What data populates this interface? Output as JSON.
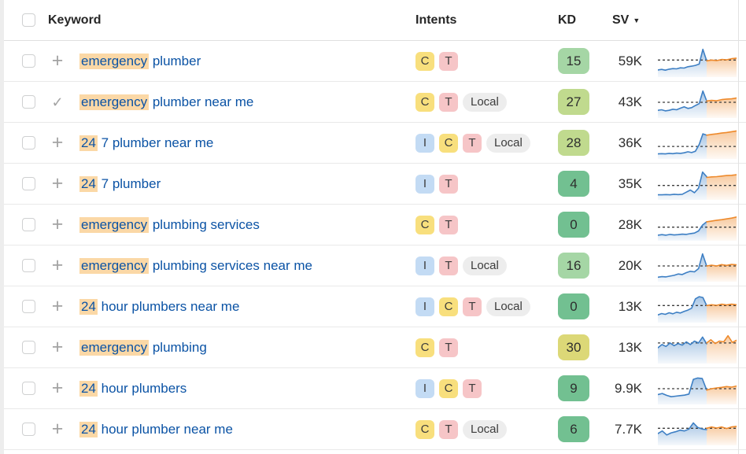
{
  "icons": {
    "plus": "+",
    "check": "✓",
    "sort_desc": "▼"
  },
  "colors": {
    "link": "#0b53a5",
    "keyword_highlight": "#fbd8a6",
    "kd_green": "#72c091",
    "kd_lightgreen": "#a5d6a5",
    "kd_lime": "#c0da8e",
    "kd_yellow": "#dcd877",
    "intent_informational": "#c3dbf4",
    "intent_commercial": "#f8df7d",
    "intent_transactional": "#f6c5c7",
    "intent_local": "#ededed",
    "spark_blue": "#3d7fc4",
    "spark_orange": "#ee8a2c"
  },
  "table": {
    "header": {
      "keyword": "Keyword",
      "intents": "Intents",
      "kd": "KD",
      "sv": "SV"
    },
    "sorted_by": "SV",
    "rows": [
      {
        "keyword_highlight": "emergency",
        "keyword_rest": " plumber",
        "added": false,
        "intents": [
          "C",
          "T"
        ],
        "kd": "15",
        "kd_color": "lightgreen",
        "sv": "59K",
        "trend_dash": 0.55,
        "trend_blue": [
          0.18,
          0.2,
          0.17,
          0.21,
          0.23,
          0.22,
          0.26,
          0.25,
          0.3,
          0.32,
          0.35,
          0.4,
          0.95,
          0.52
        ],
        "trend_orange": [
          0.52,
          0.55,
          0.53,
          0.57,
          0.56,
          0.6,
          0.62
        ]
      },
      {
        "keyword_highlight": "emergency",
        "keyword_rest": " plumber near me",
        "added": true,
        "intents": [
          "C",
          "T",
          "Local"
        ],
        "kd": "27",
        "kd_color": "lime",
        "sv": "43K",
        "trend_dash": 0.5,
        "trend_blue": [
          0.2,
          0.22,
          0.18,
          0.2,
          0.24,
          0.22,
          0.28,
          0.33,
          0.27,
          0.3,
          0.38,
          0.45,
          0.92,
          0.55
        ],
        "trend_orange": [
          0.55,
          0.57,
          0.56,
          0.6,
          0.62,
          0.63,
          0.66
        ]
      },
      {
        "keyword_highlight": "24",
        "keyword_rest": " 7 plumber near me",
        "added": false,
        "intents": [
          "I",
          "C",
          "T",
          "Local"
        ],
        "kd": "28",
        "kd_color": "lime",
        "sv": "36K",
        "trend_dash": 0.38,
        "trend_blue": [
          0.1,
          0.11,
          0.1,
          0.12,
          0.11,
          0.13,
          0.12,
          0.14,
          0.18,
          0.15,
          0.2,
          0.45,
          0.85,
          0.8
        ],
        "trend_orange": [
          0.8,
          0.83,
          0.85,
          0.88,
          0.9,
          0.93,
          0.96
        ]
      },
      {
        "keyword_highlight": "24",
        "keyword_rest": " 7 plumber",
        "added": false,
        "intents": [
          "I",
          "T"
        ],
        "kd": "4",
        "kd_color": "green",
        "sv": "35K",
        "trend_dash": 0.45,
        "trend_blue": [
          0.1,
          0.1,
          0.11,
          0.1,
          0.12,
          0.11,
          0.12,
          0.2,
          0.28,
          0.18,
          0.35,
          0.95,
          0.78
        ],
        "trend_orange": [
          0.75,
          0.77,
          0.78,
          0.8,
          0.82,
          0.83,
          0.85
        ]
      },
      {
        "keyword_highlight": "emergency",
        "keyword_rest": " plumbing services",
        "added": false,
        "intents": [
          "C",
          "T"
        ],
        "kd": "0",
        "kd_color": "green",
        "sv": "28K",
        "trend_dash": 0.42,
        "trend_blue": [
          0.12,
          0.14,
          0.12,
          0.15,
          0.13,
          0.14,
          0.16,
          0.15,
          0.18,
          0.2,
          0.28,
          0.5,
          0.62
        ],
        "trend_orange": [
          0.62,
          0.65,
          0.68,
          0.7,
          0.73,
          0.76,
          0.8
        ]
      },
      {
        "keyword_highlight": "emergency",
        "keyword_rest": " plumbing services near me",
        "added": false,
        "intents": [
          "I",
          "T",
          "Local"
        ],
        "kd": "16",
        "kd_color": "lightgreen",
        "sv": "20K",
        "trend_dash": 0.5,
        "trend_blue": [
          0.08,
          0.1,
          0.09,
          0.12,
          0.15,
          0.2,
          0.18,
          0.25,
          0.3,
          0.28,
          0.4,
          0.95,
          0.5
        ],
        "trend_orange": [
          0.5,
          0.53,
          0.5,
          0.55,
          0.52,
          0.56,
          0.54
        ]
      },
      {
        "keyword_highlight": "24",
        "keyword_rest": " hour plumbers near me",
        "added": false,
        "intents": [
          "I",
          "C",
          "T",
          "Local"
        ],
        "kd": "0",
        "kd_color": "green",
        "sv": "13K",
        "trend_dash": 0.55,
        "trend_blue": [
          0.2,
          0.25,
          0.22,
          0.28,
          0.24,
          0.3,
          0.27,
          0.33,
          0.38,
          0.45,
          0.8,
          0.88,
          0.85,
          0.55
        ],
        "trend_orange": [
          0.55,
          0.58,
          0.56,
          0.6,
          0.57,
          0.6,
          0.58
        ]
      },
      {
        "keyword_highlight": "emergency",
        "keyword_rest": " plumbing",
        "added": false,
        "intents": [
          "C",
          "T"
        ],
        "kd": "30",
        "kd_color": "yellow",
        "sv": "13K",
        "trend_dash": 0.68,
        "trend_blue": [
          0.5,
          0.62,
          0.55,
          0.68,
          0.58,
          0.66,
          0.6,
          0.72,
          0.62,
          0.75,
          0.68,
          0.9,
          0.65
        ],
        "trend_orange": [
          0.68,
          0.8,
          0.66,
          0.75,
          0.72,
          0.95,
          0.7,
          0.78
        ]
      },
      {
        "keyword_highlight": "24",
        "keyword_rest": " hour plumbers",
        "added": false,
        "intents": [
          "I",
          "C",
          "T"
        ],
        "kd": "9",
        "kd_color": "green",
        "sv": "9.9K",
        "trend_dash": 0.5,
        "trend_blue": [
          0.28,
          0.32,
          0.25,
          0.2,
          0.22,
          0.24,
          0.26,
          0.3,
          0.85,
          0.9,
          0.88,
          0.45
        ],
        "trend_orange": [
          0.45,
          0.5,
          0.53,
          0.55,
          0.58,
          0.56,
          0.6
        ]
      },
      {
        "keyword_highlight": "24",
        "keyword_rest": " hour plumber near me",
        "added": false,
        "intents": [
          "C",
          "T",
          "Local"
        ],
        "kd": "6",
        "kd_color": "green",
        "sv": "7.7K",
        "trend_dash": 0.55,
        "trend_blue": [
          0.35,
          0.45,
          0.3,
          0.38,
          0.42,
          0.48,
          0.45,
          0.52,
          0.75,
          0.58,
          0.52,
          0.5
        ],
        "trend_orange": [
          0.55,
          0.6,
          0.56,
          0.6,
          0.54,
          0.6,
          0.62
        ]
      }
    ]
  }
}
